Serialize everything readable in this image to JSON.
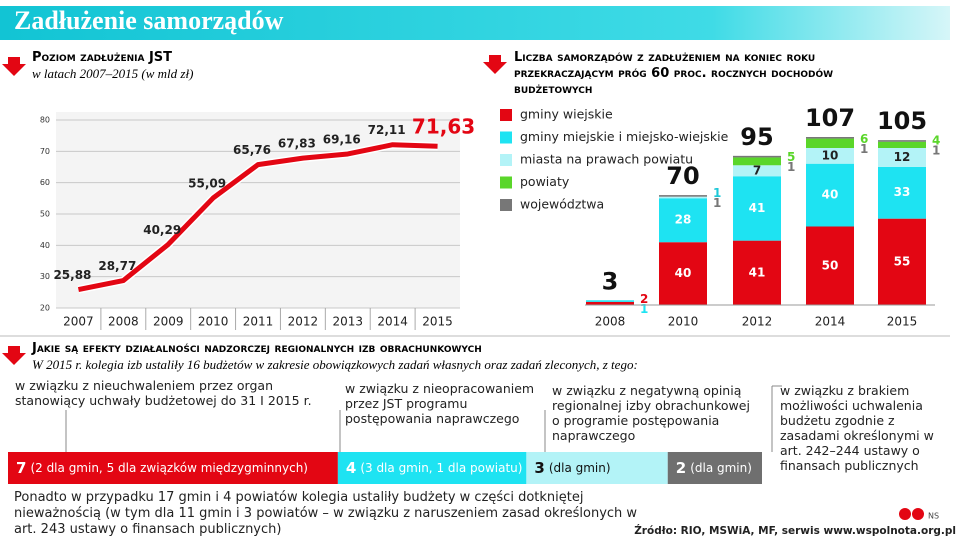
{
  "title": "Zadłużenie samorządów",
  "chart_data": [
    {
      "type": "line",
      "title": "Poziom zadłużenia JST",
      "subtitle": "w latach 2007–2015 (w mld zł)",
      "categories": [
        "2007",
        "2008",
        "2009",
        "2010",
        "2011",
        "2012",
        "2013",
        "2014",
        "2015"
      ],
      "values": [
        25.88,
        28.77,
        40.29,
        55.09,
        65.76,
        67.83,
        69.16,
        72.11,
        71.63
      ],
      "value_labels": [
        "25,88",
        "28,77",
        "40,29",
        "55,09",
        "65,76",
        "67,83",
        "69,16",
        "72,11",
        "71,63"
      ],
      "color": "#e30613",
      "ylim": [
        20,
        80
      ],
      "yticks": [
        20,
        30,
        40,
        50,
        60,
        70,
        80
      ],
      "grid": true
    },
    {
      "type": "stacked-bar",
      "title": "Liczba samorządów z zadłużeniem na koniec roku przekraczającym próg 60 proc. rocznych dochodów budżetowych",
      "categories": [
        "2008",
        "2010",
        "2012",
        "2014",
        "2015"
      ],
      "series": [
        {
          "name": "gminy wiejskie",
          "color": "#e30613",
          "values": [
            2,
            40,
            41,
            50,
            55
          ]
        },
        {
          "name": "gminy miejskie i miejsko-wiejskie",
          "color": "#1ee3f2",
          "values": [
            1,
            28,
            41,
            40,
            33
          ]
        },
        {
          "name": "miasta na prawach powiatu",
          "color": "#b3f3f7",
          "values": [
            0,
            1,
            7,
            10,
            12
          ]
        },
        {
          "name": "powiaty",
          "color": "#5ad62a",
          "values": [
            0,
            0,
            5,
            6,
            4
          ]
        },
        {
          "name": "województwa",
          "color": "#777777",
          "values": [
            0,
            1,
            1,
            1,
            1
          ]
        }
      ],
      "totals": [
        3,
        70,
        95,
        107,
        105
      ]
    },
    {
      "type": "segment-bar",
      "title": "Jakie są efekty działalności nadzorczej regionalnych izb obrachunkowych",
      "subtitle": "W 2015 r. kolegia izb ustaliły 16 budżetów w zakresie obowiązkowych zadań własnych oraz zadań zleconych, z tego:",
      "values": [
        7,
        4,
        3,
        2
      ],
      "details": [
        "(2 dla gmin, 5 dla związków międzygminnych)",
        "(3 dla gmin, 1 dla powiatu)",
        "(dla gmin)",
        "(dla gmin)"
      ],
      "colors": [
        "#e30613",
        "#1ee3f2",
        "#b3f3f7",
        "#6f6f6f"
      ],
      "annotations": [
        "w związku z nieuchwaleniem przez organ stanowiący uchwały budżetowej do 31 I 2015 r.",
        "w związku z nieopracowaniem przez JST programu postępowania naprawczego",
        "w związku z negatywną opinią regionalnej izby obrachunkowej o programie postępowania naprawczego",
        "w związku z brakiem możliwości uchwalenia budżetu zgodnie z zasadami określonymi w art. 242–244 ustawy o finansach publicznych"
      ]
    }
  ],
  "note": "Ponadto w przypadku 17 gmin i 4 powiatów kolegia ustaliły budżety w części dotkniętej nieważnością (w tym dla 11 gmin i 3 powiatów – w związku z naruszeniem zasad określonych w art. 243 ustawy o finansach publicznych)",
  "source": "Źródło: RIO, MSWiA, MF, serwis www.wspolnota.org.pl",
  "logo": "NS"
}
